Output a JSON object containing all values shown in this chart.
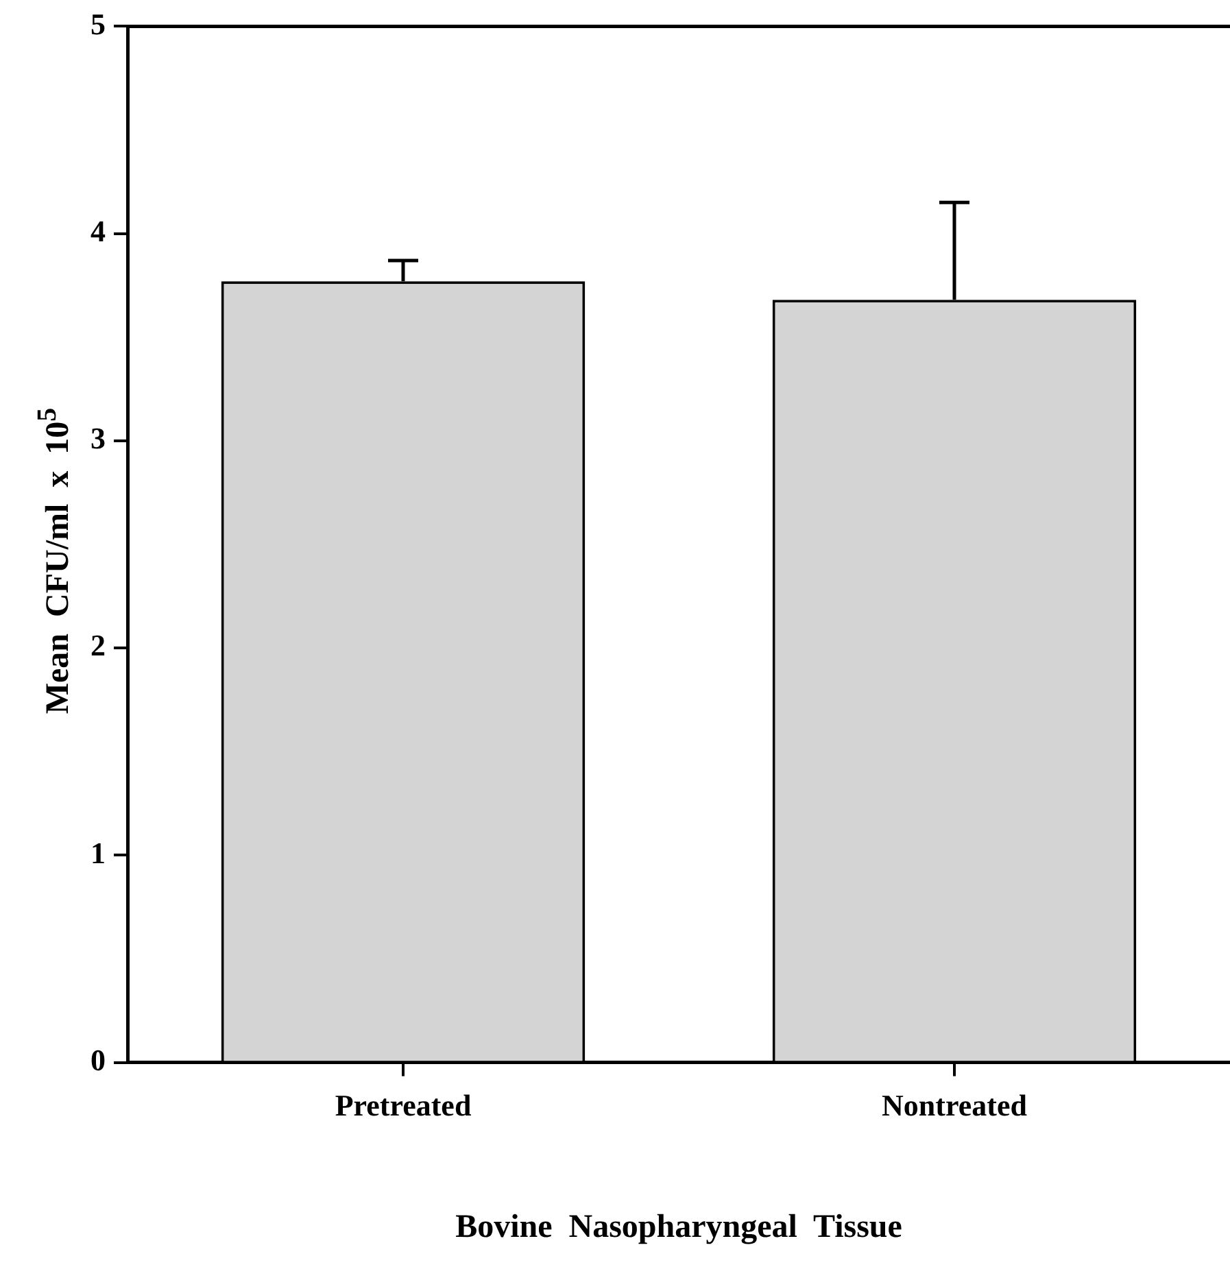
{
  "chart_data": {
    "type": "bar",
    "xlabel": "Bovine  Nasopharyngeal  Tissue",
    "ylabel": "Mean CFU/ml x 10$^{5}$",
    "categories": [
      "Pretreated",
      "Nontreated"
    ],
    "values": [
      3.77,
      3.68
    ],
    "errors": [
      [
        3.77,
        3.87
      ],
      [
        3.68,
        4.15
      ]
    ],
    "color": "#d4d4d4",
    "ylim": [
      0,
      5
    ],
    "yticks": [
      0,
      1,
      2,
      3,
      4,
      5
    ],
    "grid": false,
    "legend": false
  }
}
